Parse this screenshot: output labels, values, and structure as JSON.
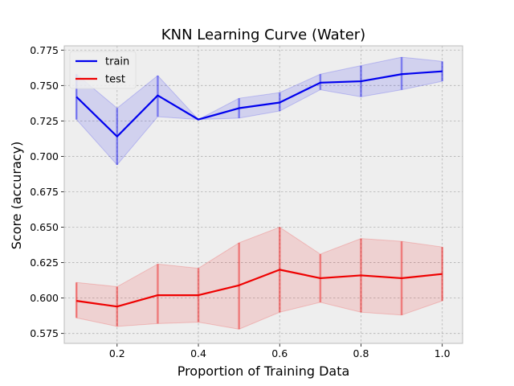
{
  "chart_data": {
    "type": "line",
    "title": "KNN Learning Curve (Water)",
    "xlabel": "Proportion of Training Data",
    "ylabel": "Score (accuracy)",
    "xlim": [
      0.07,
      1.05
    ],
    "ylim": [
      0.568,
      0.778
    ],
    "xticks": [
      0.2,
      0.4,
      0.6,
      0.8,
      1.0
    ],
    "xtick_labels": [
      "0.2",
      "0.4",
      "0.6",
      "0.8",
      "1.0"
    ],
    "yticks": [
      0.575,
      0.6,
      0.625,
      0.65,
      0.675,
      0.7,
      0.725,
      0.75,
      0.775
    ],
    "ytick_labels": [
      "0.575",
      "0.600",
      "0.625",
      "0.650",
      "0.675",
      "0.700",
      "0.725",
      "0.750",
      "0.775"
    ],
    "grid": true,
    "legend_position": "top-left",
    "x": [
      0.1,
      0.2,
      0.3,
      0.4,
      0.5,
      0.6,
      0.7,
      0.8,
      0.9,
      1.0
    ],
    "series": [
      {
        "name": "train",
        "color": "#0000ee",
        "values": [
          0.742,
          0.714,
          0.743,
          0.726,
          0.734,
          0.738,
          0.752,
          0.753,
          0.758,
          0.76
        ],
        "lower": [
          0.726,
          0.694,
          0.728,
          0.726,
          0.727,
          0.732,
          0.747,
          0.742,
          0.747,
          0.753
        ],
        "upper": [
          0.758,
          0.734,
          0.757,
          0.726,
          0.741,
          0.745,
          0.758,
          0.764,
          0.77,
          0.767
        ]
      },
      {
        "name": "test",
        "color": "#ee0000",
        "values": [
          0.598,
          0.594,
          0.602,
          0.602,
          0.609,
          0.62,
          0.614,
          0.616,
          0.614,
          0.617
        ],
        "lower": [
          0.586,
          0.58,
          0.582,
          0.583,
          0.578,
          0.59,
          0.597,
          0.59,
          0.588,
          0.598
        ],
        "upper": [
          0.611,
          0.608,
          0.624,
          0.621,
          0.639,
          0.65,
          0.631,
          0.642,
          0.64,
          0.636
        ]
      }
    ]
  }
}
